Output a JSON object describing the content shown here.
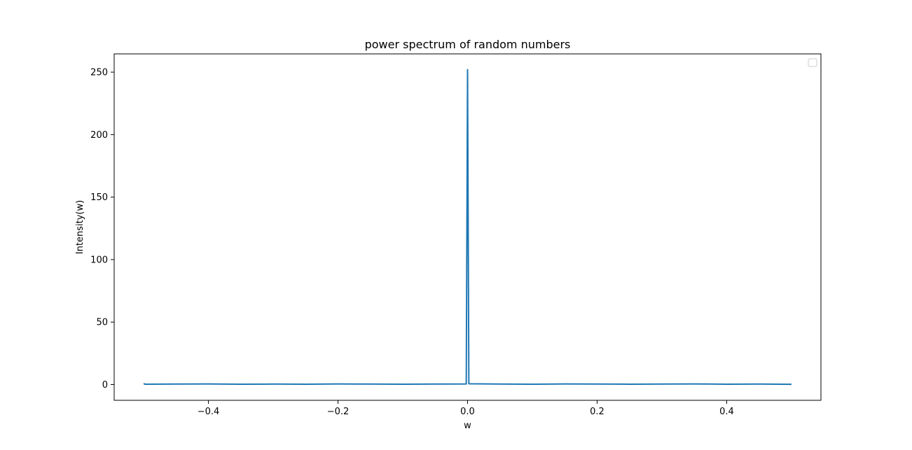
{
  "chart_data": {
    "type": "line",
    "title": "power spectrum of random numbers",
    "xlabel": "w",
    "ylabel": "Intensity(w)",
    "xlim": [
      -0.5455,
      0.5455
    ],
    "ylim": [
      -12.6,
      264.6
    ],
    "xticks": [
      -0.4,
      -0.2,
      0.0,
      0.2,
      0.4
    ],
    "xtick_labels": [
      "−0.4",
      "−0.2",
      "0.0",
      "0.2",
      "0.4"
    ],
    "yticks": [
      0,
      50,
      100,
      150,
      200,
      250
    ],
    "ytick_labels": [
      "0",
      "50",
      "100",
      "150",
      "200",
      "250"
    ],
    "grid": false,
    "legend": {
      "placement": "top-right",
      "entries": []
    },
    "series": [
      {
        "color": "#1f77b4",
        "x": [
          -0.5,
          -0.498,
          -0.45,
          -0.4,
          -0.35,
          -0.3,
          -0.25,
          -0.2,
          -0.15,
          -0.1,
          -0.05,
          -0.002,
          0.0,
          0.002,
          0.05,
          0.1,
          0.15,
          0.2,
          0.25,
          0.3,
          0.35,
          0.4,
          0.45,
          0.5
        ],
        "y": [
          0.8,
          0.3,
          0.4,
          0.5,
          0.3,
          0.4,
          0.3,
          0.5,
          0.4,
          0.3,
          0.4,
          0.5,
          252,
          0.6,
          0.4,
          0.3,
          0.5,
          0.4,
          0.3,
          0.4,
          0.5,
          0.3,
          0.4,
          0.2
        ]
      }
    ]
  }
}
